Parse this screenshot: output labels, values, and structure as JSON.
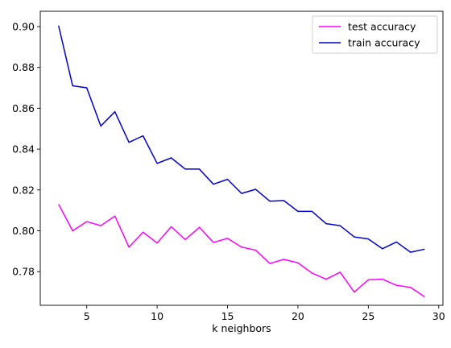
{
  "chart_data": {
    "type": "line",
    "title": "",
    "xlabel": "k neighbors",
    "ylabel": "",
    "xlim": [
      1.7,
      30.3
    ],
    "ylim": [
      0.7635,
      0.9075
    ],
    "xticks": [
      5,
      10,
      15,
      20,
      25,
      30
    ],
    "yticks": [
      0.78,
      0.8,
      0.82,
      0.84,
      0.86,
      0.88,
      0.9
    ],
    "legend_position": "top-right",
    "grid": false,
    "x": [
      3,
      4,
      5,
      6,
      7,
      8,
      9,
      10,
      11,
      12,
      13,
      14,
      15,
      16,
      17,
      18,
      19,
      20,
      21,
      22,
      23,
      24,
      25,
      26,
      27,
      28,
      29
    ],
    "series": [
      {
        "name": "test accuracy",
        "color": "#ff00ff",
        "values": [
          0.813,
          0.8,
          0.8045,
          0.8025,
          0.8072,
          0.792,
          0.7993,
          0.794,
          0.802,
          0.7957,
          0.8017,
          0.7943,
          0.7963,
          0.792,
          0.7905,
          0.784,
          0.786,
          0.7843,
          0.7793,
          0.7763,
          0.7797,
          0.77,
          0.776,
          0.7763,
          0.7733,
          0.7723,
          0.7677
        ]
      },
      {
        "name": "train accuracy",
        "color": "#0000cc",
        "values": [
          0.9005,
          0.871,
          0.87,
          0.8513,
          0.8583,
          0.8433,
          0.8465,
          0.833,
          0.8357,
          0.8302,
          0.8302,
          0.8228,
          0.8252,
          0.8183,
          0.8203,
          0.8145,
          0.8148,
          0.8095,
          0.8095,
          0.8035,
          0.8025,
          0.797,
          0.796,
          0.7912,
          0.7945,
          0.7895,
          0.791
        ]
      }
    ]
  }
}
